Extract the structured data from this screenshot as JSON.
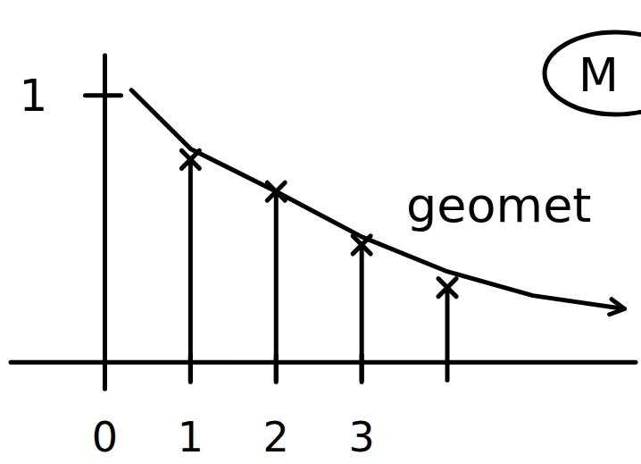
{
  "chart_data": {
    "type": "stem",
    "xlim": [
      -1.1,
      6.2
    ],
    "ylim": [
      -0.1,
      1.15
    ],
    "xticks": [
      0,
      1,
      2,
      3
    ],
    "yticks": [
      1
    ],
    "annotations": [
      "geomet",
      "M"
    ],
    "series": [
      {
        "type": "line",
        "line_style": "solid",
        "x": [
          0.31,
          1,
          2,
          3,
          4,
          5,
          6.07
        ],
        "values": [
          1.02,
          0.8,
          0.64,
          0.47,
          0.34,
          0.25,
          0.2
        ]
      },
      {
        "type": "stem",
        "marker": "x",
        "x": [
          1,
          2,
          3,
          4
        ],
        "values": [
          0.76,
          0.64,
          0.44,
          0.28
        ]
      }
    ]
  }
}
